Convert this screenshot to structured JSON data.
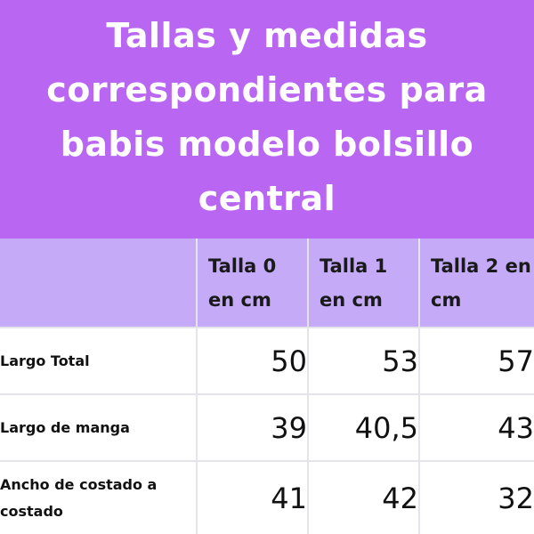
{
  "header": {
    "title": "Tallas y medidas correspondientes para babis modelo bolsillo central"
  },
  "table": {
    "columns": [
      "",
      "Talla 0 en cm",
      "Talla 1 en cm",
      "Talla 2 en cm"
    ],
    "rows": [
      {
        "label": "Largo Total",
        "values": [
          "50",
          "53",
          "57"
        ]
      },
      {
        "label": "Largo de manga",
        "values": [
          "39",
          "40,5",
          "43"
        ]
      },
      {
        "label": "Ancho de costado a costado",
        "values": [
          "41",
          "42",
          "32"
        ]
      }
    ]
  },
  "colors": {
    "header_background": "#b967f3",
    "table_header_background": "#c4aaf7",
    "title_text": "#ffffff"
  }
}
